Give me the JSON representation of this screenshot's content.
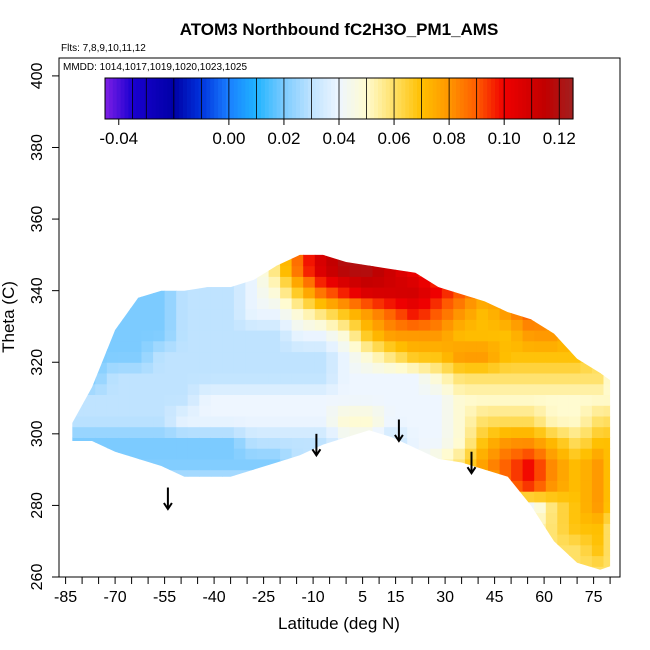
{
  "chart_data": {
    "type": "heatmap",
    "title": "ATOM3 Northbound fC2H3O_PM1_AMS",
    "flights_note": "Flts: 7,8,9,10,11,12",
    "dates_note": "MMDD: 1014,1017,1019,1020,1023,1025",
    "xlabel": "Latitude (deg N)",
    "ylabel": "Theta (C)",
    "xlim": [
      -87,
      83
    ],
    "ylim": [
      260,
      405
    ],
    "x_ticks": [
      -85,
      -70,
      -55,
      -40,
      -25,
      -10,
      5,
      15,
      30,
      45,
      60,
      75
    ],
    "x_tick_labels": [
      "-85",
      "-70",
      "-55",
      "-40",
      "-25",
      "-10",
      "5",
      "15",
      "30",
      "45",
      "60",
      "75"
    ],
    "x_minor_step": 5,
    "y_ticks": [
      260,
      280,
      300,
      320,
      340,
      360,
      380,
      400
    ],
    "y_tick_labels": [
      "260",
      "280",
      "300",
      "320",
      "340",
      "360",
      "380",
      "400"
    ],
    "colorbar": {
      "min": -0.045,
      "max": 0.125,
      "ticks": [
        -0.04,
        0.0,
        0.02,
        0.04,
        0.06,
        0.08,
        0.1,
        0.12
      ],
      "tick_labels": [
        "-0.04",
        "0.00",
        "0.02",
        "0.04",
        "0.06",
        "0.08",
        "0.10",
        "0.12"
      ],
      "divisions": [
        -0.035,
        -0.03,
        -0.02,
        -0.01,
        0.0,
        0.01,
        0.02,
        0.03,
        0.04,
        0.05,
        0.06,
        0.07,
        0.08,
        0.09,
        0.1,
        0.11,
        0.12
      ],
      "stops": [
        {
          "v": -0.045,
          "c": "#7f1fe6"
        },
        {
          "v": -0.035,
          "c": "#1a00d0"
        },
        {
          "v": -0.02,
          "c": "#0000a6"
        },
        {
          "v": -0.01,
          "c": "#0033dd"
        },
        {
          "v": 0.0,
          "c": "#1a7fff"
        },
        {
          "v": 0.01,
          "c": "#20b4ff"
        },
        {
          "v": 0.02,
          "c": "#7ccbff"
        },
        {
          "v": 0.03,
          "c": "#bfe3ff"
        },
        {
          "v": 0.04,
          "c": "#eef6ff"
        },
        {
          "v": 0.05,
          "c": "#fffbd0"
        },
        {
          "v": 0.06,
          "c": "#ffe066"
        },
        {
          "v": 0.07,
          "c": "#ffbf00"
        },
        {
          "v": 0.08,
          "c": "#ff9600"
        },
        {
          "v": 0.09,
          "c": "#ff5c00"
        },
        {
          "v": 0.1,
          "c": "#f00000"
        },
        {
          "v": 0.115,
          "c": "#c00000"
        },
        {
          "v": 0.125,
          "c": "#a22020"
        }
      ]
    },
    "domain_lat": [
      -83,
      -77,
      -70,
      -63,
      -56,
      -49,
      -42,
      -35,
      -28,
      -21,
      -14,
      -7,
      0,
      7,
      14,
      21,
      28,
      35,
      42,
      49,
      56,
      63,
      70,
      77,
      80
    ],
    "domain_top": [
      303,
      313,
      329,
      338,
      340,
      340,
      341,
      341,
      343,
      347,
      350,
      350,
      348,
      347,
      346,
      345,
      341,
      339,
      337,
      334,
      332,
      328,
      321,
      317,
      315
    ],
    "domain_bottom": [
      298,
      298,
      295,
      293,
      291,
      288,
      288,
      288,
      290,
      292,
      294,
      297,
      299,
      301,
      299,
      296,
      293,
      292,
      290,
      288,
      280,
      270,
      264,
      262,
      263
    ],
    "field_theta": [
      262,
      268,
      274,
      280,
      286,
      292,
      298,
      304,
      310,
      316,
      322,
      328,
      334,
      340,
      346,
      352
    ],
    "field_values": [
      [
        0.03,
        0.03,
        0.03,
        0.03,
        0.03,
        0.03,
        0.03,
        0.03,
        0.03,
        0.03,
        0.03,
        0.03,
        0.03,
        0.03,
        0.03,
        0.03,
        0.03,
        0.04,
        0.05,
        0.05,
        0.05,
        0.06,
        0.06,
        0.06,
        0.06
      ],
      [
        0.03,
        0.03,
        0.03,
        0.03,
        0.03,
        0.03,
        0.03,
        0.03,
        0.03,
        0.03,
        0.03,
        0.03,
        0.03,
        0.03,
        0.03,
        0.03,
        0.03,
        0.04,
        0.05,
        0.05,
        0.05,
        0.06,
        0.06,
        0.07,
        0.06
      ],
      [
        0.03,
        0.03,
        0.03,
        0.03,
        0.03,
        0.03,
        0.03,
        0.03,
        0.03,
        0.03,
        0.03,
        0.03,
        0.03,
        0.03,
        0.03,
        0.03,
        0.03,
        0.04,
        0.05,
        0.05,
        0.05,
        0.06,
        0.07,
        0.07,
        0.06
      ],
      [
        0.03,
        0.03,
        0.03,
        0.03,
        0.03,
        0.03,
        0.03,
        0.03,
        0.03,
        0.03,
        0.03,
        0.03,
        0.03,
        0.03,
        0.03,
        0.03,
        0.03,
        0.04,
        0.05,
        0.05,
        0.04,
        0.06,
        0.07,
        0.08,
        0.07
      ],
      [
        0.03,
        0.03,
        0.03,
        0.03,
        0.03,
        0.03,
        0.03,
        0.03,
        0.03,
        0.03,
        0.03,
        0.03,
        0.03,
        0.03,
        0.03,
        0.03,
        0.04,
        0.05,
        0.07,
        0.09,
        0.1,
        0.08,
        0.07,
        0.08,
        0.07
      ],
      [
        0.02,
        0.02,
        0.02,
        0.02,
        0.02,
        0.02,
        0.02,
        0.02,
        0.02,
        0.02,
        0.03,
        0.03,
        0.04,
        0.04,
        0.03,
        0.04,
        0.05,
        0.06,
        0.08,
        0.09,
        0.1,
        0.08,
        0.07,
        0.08,
        0.07
      ],
      [
        0.02,
        0.02,
        0.02,
        0.02,
        0.02,
        0.02,
        0.02,
        0.02,
        0.03,
        0.03,
        0.03,
        0.03,
        0.04,
        0.04,
        0.03,
        0.04,
        0.04,
        0.05,
        0.07,
        0.08,
        0.08,
        0.07,
        0.06,
        0.07,
        0.07
      ],
      [
        0.03,
        0.03,
        0.03,
        0.03,
        0.03,
        0.04,
        0.04,
        0.04,
        0.04,
        0.04,
        0.04,
        0.04,
        0.05,
        0.05,
        0.04,
        0.04,
        0.04,
        0.05,
        0.06,
        0.06,
        0.06,
        0.05,
        0.05,
        0.06,
        0.06
      ],
      [
        0.03,
        0.03,
        0.03,
        0.03,
        0.03,
        0.03,
        0.04,
        0.04,
        0.04,
        0.04,
        0.04,
        0.04,
        0.04,
        0.04,
        0.04,
        0.04,
        0.04,
        0.05,
        0.05,
        0.05,
        0.05,
        0.05,
        0.05,
        0.05,
        0.05
      ],
      [
        0.02,
        0.02,
        0.03,
        0.03,
        0.03,
        0.03,
        0.03,
        0.03,
        0.03,
        0.03,
        0.03,
        0.03,
        0.04,
        0.04,
        0.04,
        0.04,
        0.05,
        0.06,
        0.06,
        0.06,
        0.06,
        0.06,
        0.06,
        0.06,
        0.05
      ],
      [
        0.02,
        0.02,
        0.02,
        0.02,
        0.03,
        0.03,
        0.03,
        0.03,
        0.03,
        0.03,
        0.03,
        0.03,
        0.04,
        0.05,
        0.06,
        0.07,
        0.07,
        0.08,
        0.08,
        0.07,
        0.07,
        0.07,
        0.07,
        0.06,
        0.05
      ],
      [
        0.02,
        0.02,
        0.02,
        0.02,
        0.02,
        0.03,
        0.03,
        0.03,
        0.03,
        0.03,
        0.04,
        0.04,
        0.05,
        0.07,
        0.08,
        0.08,
        0.08,
        0.07,
        0.07,
        0.07,
        0.08,
        0.08,
        0.07,
        0.06,
        0.05
      ],
      [
        0.02,
        0.02,
        0.02,
        0.02,
        0.02,
        0.03,
        0.03,
        0.03,
        0.04,
        0.04,
        0.05,
        0.06,
        0.07,
        0.08,
        0.09,
        0.1,
        0.09,
        0.08,
        0.07,
        0.08,
        0.09,
        0.08,
        0.07,
        0.06,
        0.05
      ],
      [
        0.02,
        0.02,
        0.02,
        0.02,
        0.02,
        0.03,
        0.03,
        0.03,
        0.04,
        0.05,
        0.07,
        0.09,
        0.1,
        0.11,
        0.11,
        0.11,
        0.1,
        0.09,
        0.08,
        0.08,
        0.08,
        0.08,
        0.07,
        0.06,
        0.05
      ],
      [
        0.02,
        0.02,
        0.02,
        0.02,
        0.02,
        0.03,
        0.03,
        0.03,
        0.04,
        0.06,
        0.09,
        0.11,
        0.12,
        0.12,
        0.11,
        0.1,
        0.09,
        0.08,
        0.08,
        0.08,
        0.08,
        0.07,
        0.07,
        0.06,
        0.05
      ],
      [
        0.02,
        0.02,
        0.02,
        0.02,
        0.02,
        0.03,
        0.03,
        0.03,
        0.04,
        0.06,
        0.09,
        0.11,
        0.12,
        0.12,
        0.11,
        0.1,
        0.09,
        0.08,
        0.08,
        0.08,
        0.08,
        0.07,
        0.07,
        0.06,
        0.05
      ]
    ],
    "arrows": [
      {
        "lat": -54,
        "theta_top": 285,
        "theta_tip": 279
      },
      {
        "lat": -9,
        "theta_top": 300,
        "theta_tip": 294
      },
      {
        "lat": 16,
        "theta_top": 304,
        "theta_tip": 298
      },
      {
        "lat": 38,
        "theta_top": 295,
        "theta_tip": 289
      }
    ]
  }
}
